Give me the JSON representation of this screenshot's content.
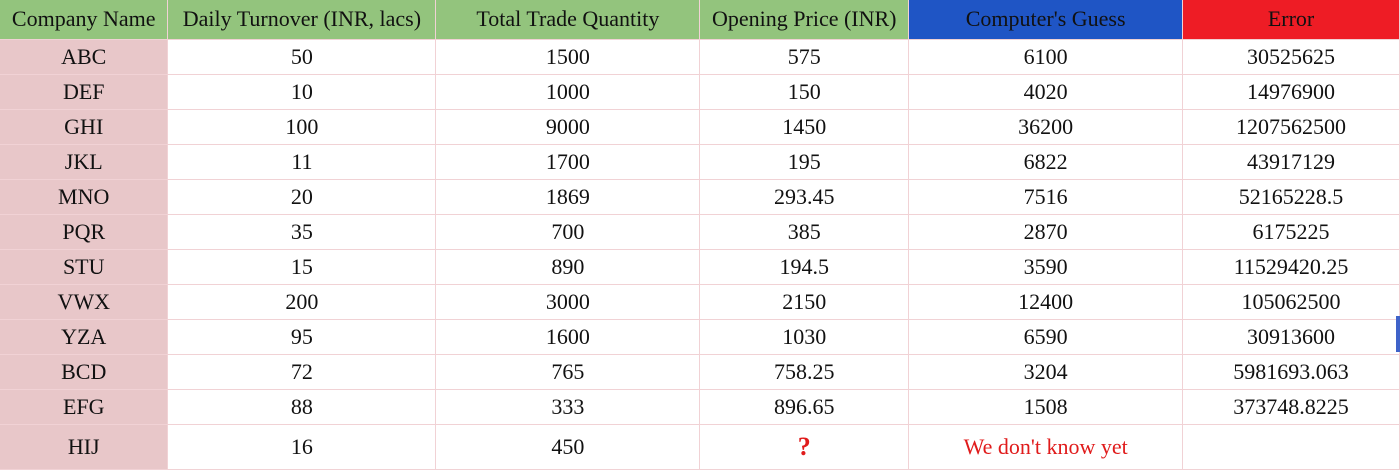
{
  "headers": [
    "Company Name",
    "Daily Turnover (INR, lacs)",
    "Total Trade Quantity",
    "Opening Price (INR)",
    "Computer's Guess",
    "Error"
  ],
  "rows": [
    [
      "ABC",
      "50",
      "1500",
      "575",
      "6100",
      "30525625"
    ],
    [
      "DEF",
      "10",
      "1000",
      "150",
      "4020",
      "14976900"
    ],
    [
      "GHI",
      "100",
      "9000",
      "1450",
      "36200",
      "1207562500"
    ],
    [
      "JKL",
      "11",
      "1700",
      "195",
      "6822",
      "43917129"
    ],
    [
      "MNO",
      "20",
      "1869",
      "293.45",
      "7516",
      "52165228.5"
    ],
    [
      "PQR",
      "35",
      "700",
      "385",
      "2870",
      "6175225"
    ],
    [
      "STU",
      "15",
      "890",
      "194.5",
      "3590",
      "11529420.25"
    ],
    [
      "VWX",
      "200",
      "3000",
      "2150",
      "12400",
      "105062500"
    ],
    [
      "YZA",
      "95",
      "1600",
      "1030",
      "6590",
      "30913600"
    ],
    [
      "BCD",
      "72",
      "765",
      "758.25",
      "3204",
      "5981693.063"
    ],
    [
      "EFG",
      "88",
      "333",
      "896.65",
      "1508",
      "373748.8225"
    ]
  ],
  "last_row": {
    "company": "HIJ",
    "turnover": "16",
    "quantity": "450",
    "opening_price": "?",
    "guess": "We don't know yet",
    "error": ""
  },
  "colors": {
    "header_green": "#93c47d",
    "header_blue": "#1f55c5",
    "header_red": "#ee1c25",
    "name_column": "#e8c7c9",
    "highlight_text": "#e01b1b"
  }
}
